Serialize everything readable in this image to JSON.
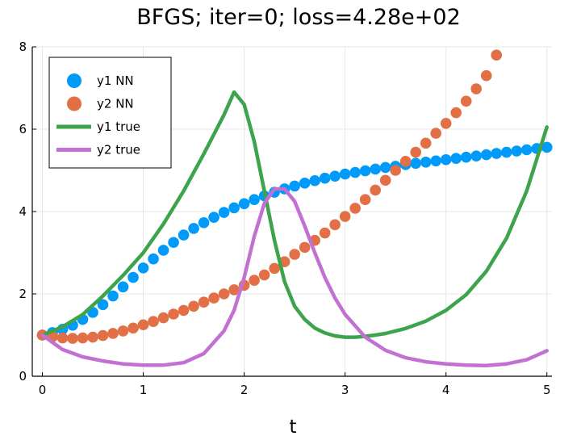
{
  "chart_data": {
    "type": "line",
    "title": "BFGS; iter=0; loss=4.28e+02",
    "xlabel": "t",
    "ylabel": "",
    "xlim": [
      -0.1,
      5.05
    ],
    "ylim": [
      0,
      8
    ],
    "xticks": [
      "0",
      "1",
      "2",
      "3",
      "4",
      "5"
    ],
    "yticks": [
      "0",
      "2",
      "4",
      "6",
      "8"
    ],
    "grid": true,
    "legend_position": "top-left",
    "series": [
      {
        "name": "y1 NN",
        "style": "markers",
        "color": "#009AFA",
        "x": [
          0.0,
          0.1,
          0.2,
          0.3,
          0.4,
          0.5,
          0.6,
          0.7,
          0.8,
          0.9,
          1.0,
          1.1,
          1.2,
          1.3,
          1.4,
          1.5,
          1.6,
          1.7,
          1.8,
          1.9,
          2.0,
          2.1,
          2.2,
          2.3,
          2.4,
          2.5,
          2.6,
          2.7,
          2.8,
          2.9,
          3.0,
          3.1,
          3.2,
          3.3,
          3.4,
          3.5,
          3.6,
          3.7,
          3.8,
          3.9,
          4.0,
          4.1,
          4.2,
          4.3,
          4.4,
          4.5,
          4.6,
          4.7,
          4.8,
          4.9,
          5.0
        ],
        "y": [
          1.0,
          1.06,
          1.14,
          1.24,
          1.38,
          1.55,
          1.74,
          1.95,
          2.17,
          2.4,
          2.63,
          2.85,
          3.06,
          3.25,
          3.43,
          3.59,
          3.73,
          3.86,
          3.98,
          4.09,
          4.19,
          4.29,
          4.38,
          4.47,
          4.55,
          4.62,
          4.69,
          4.75,
          4.81,
          4.86,
          4.91,
          4.95,
          4.99,
          5.03,
          5.07,
          5.1,
          5.14,
          5.17,
          5.2,
          5.23,
          5.26,
          5.29,
          5.32,
          5.35,
          5.38,
          5.41,
          5.44,
          5.47,
          5.5,
          5.53,
          5.56
        ]
      },
      {
        "name": "y2 NN",
        "style": "markers",
        "color": "#E26F46",
        "x": [
          0.0,
          0.1,
          0.2,
          0.3,
          0.4,
          0.5,
          0.6,
          0.7,
          0.8,
          0.9,
          1.0,
          1.1,
          1.2,
          1.3,
          1.4,
          1.5,
          1.6,
          1.7,
          1.8,
          1.9,
          2.0,
          2.1,
          2.2,
          2.3,
          2.4,
          2.5,
          2.6,
          2.7,
          2.8,
          2.9,
          3.0,
          3.1,
          3.2,
          3.3,
          3.4,
          3.5,
          3.6,
          3.7,
          3.8,
          3.9,
          4.0,
          4.1,
          4.2,
          4.3,
          4.4,
          4.5
        ],
        "y": [
          1.0,
          0.96,
          0.93,
          0.92,
          0.93,
          0.95,
          0.99,
          1.04,
          1.1,
          1.17,
          1.25,
          1.33,
          1.42,
          1.51,
          1.6,
          1.7,
          1.8,
          1.9,
          2.0,
          2.1,
          2.21,
          2.33,
          2.46,
          2.62,
          2.78,
          2.96,
          3.13,
          3.3,
          3.48,
          3.68,
          3.88,
          4.08,
          4.29,
          4.52,
          4.76,
          5.0,
          5.22,
          5.44,
          5.66,
          5.9,
          6.14,
          6.4,
          6.68,
          6.98,
          7.3,
          7.8
        ]
      },
      {
        "name": "y1 true",
        "style": "line",
        "color": "#3DA44D",
        "x": [
          0.0,
          0.2,
          0.4,
          0.6,
          0.8,
          1.0,
          1.2,
          1.4,
          1.6,
          1.8,
          1.9,
          2.0,
          2.1,
          2.2,
          2.3,
          2.4,
          2.5,
          2.6,
          2.7,
          2.8,
          2.9,
          3.0,
          3.1,
          3.2,
          3.3,
          3.4,
          3.6,
          3.8,
          4.0,
          4.2,
          4.4,
          4.6,
          4.8,
          5.0
        ],
        "y": [
          1.0,
          1.2,
          1.5,
          1.95,
          2.45,
          3.0,
          3.7,
          4.5,
          5.4,
          6.35,
          6.9,
          6.6,
          5.7,
          4.5,
          3.3,
          2.3,
          1.7,
          1.38,
          1.17,
          1.05,
          0.98,
          0.95,
          0.95,
          0.97,
          1.0,
          1.04,
          1.16,
          1.34,
          1.6,
          1.98,
          2.55,
          3.35,
          4.5,
          6.05
        ]
      },
      {
        "name": "y2 true",
        "style": "line",
        "color": "#C271D2",
        "x": [
          0.0,
          0.2,
          0.4,
          0.6,
          0.8,
          1.0,
          1.2,
          1.4,
          1.6,
          1.8,
          1.9,
          2.0,
          2.1,
          2.2,
          2.3,
          2.4,
          2.5,
          2.6,
          2.7,
          2.8,
          2.9,
          3.0,
          3.2,
          3.4,
          3.6,
          3.8,
          4.0,
          4.2,
          4.4,
          4.6,
          4.8,
          5.0
        ],
        "y": [
          1.0,
          0.65,
          0.47,
          0.37,
          0.3,
          0.27,
          0.27,
          0.33,
          0.55,
          1.1,
          1.6,
          2.4,
          3.4,
          4.2,
          4.55,
          4.55,
          4.25,
          3.65,
          3.0,
          2.4,
          1.9,
          1.5,
          0.95,
          0.63,
          0.45,
          0.35,
          0.3,
          0.27,
          0.26,
          0.3,
          0.4,
          0.62
        ]
      }
    ]
  }
}
